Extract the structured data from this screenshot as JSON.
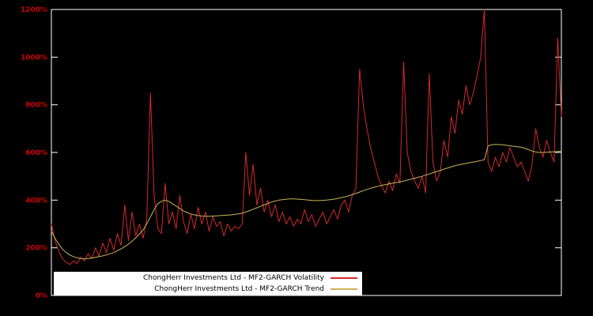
{
  "chart_data": {
    "type": "line",
    "title": "",
    "xlabel": "",
    "ylabel": "",
    "ylim": [
      0,
      1200
    ],
    "y_ticks": [
      {
        "value": 0,
        "label": "0%"
      },
      {
        "value": 200,
        "label": "200%"
      },
      {
        "value": 400,
        "label": "400%"
      },
      {
        "value": 600,
        "label": "600%"
      },
      {
        "value": 800,
        "label": "800%"
      },
      {
        "value": 1000,
        "label": "1000%"
      },
      {
        "value": 1200,
        "label": "1200%"
      }
    ],
    "grid": false,
    "legend_position": "bottom-center",
    "background_color": "#000000",
    "border_color": "#ffffff",
    "tick_label_color": "#cc0000",
    "series": [
      {
        "name": "ChongHerr Investments Ltd - MF2-GARCH Volatility",
        "color": "#d42a2a",
        "values": [
          300,
          230,
          185,
          155,
          140,
          130,
          145,
          135,
          160,
          145,
          175,
          155,
          200,
          165,
          220,
          180,
          240,
          190,
          260,
          210,
          380,
          230,
          350,
          250,
          300,
          240,
          320,
          850,
          420,
          280,
          260,
          470,
          300,
          350,
          280,
          420,
          310,
          260,
          340,
          280,
          370,
          300,
          350,
          270,
          330,
          290,
          310,
          250,
          300,
          270,
          290,
          280,
          300,
          600,
          420,
          550,
          380,
          450,
          350,
          400,
          330,
          380,
          310,
          350,
          300,
          330,
          290,
          320,
          300,
          360,
          310,
          340,
          290,
          320,
          350,
          300,
          330,
          360,
          320,
          380,
          400,
          350,
          420,
          450,
          950,
          800,
          700,
          620,
          560,
          500,
          460,
          430,
          480,
          440,
          510,
          470,
          980,
          600,
          520,
          480,
          450,
          500,
          430,
          930,
          560,
          480,
          520,
          650,
          580,
          750,
          680,
          820,
          760,
          880,
          800,
          850,
          920,
          1000,
          1200,
          560,
          520,
          580,
          540,
          600,
          560,
          620,
          580,
          540,
          560,
          520,
          480,
          550,
          700,
          620,
          580,
          650,
          600,
          560,
          1080,
          750
        ]
      },
      {
        "name": "ChongHerr Investments Ltd - MF2-GARCH Trend",
        "color": "#c9b458",
        "values": [
          270,
          240,
          215,
          195,
          180,
          170,
          163,
          158,
          155,
          154,
          155,
          157,
          160,
          163,
          166,
          170,
          175,
          180,
          188,
          196,
          205,
          215,
          228,
          242,
          258,
          275,
          300,
          330,
          360,
          385,
          395,
          400,
          395,
          385,
          375,
          365,
          355,
          348,
          342,
          338,
          335,
          333,
          332,
          332,
          333,
          334,
          335,
          336,
          337,
          338,
          340,
          342,
          345,
          350,
          356,
          362,
          368,
          374,
          380,
          386,
          392,
          396,
          400,
          402,
          404,
          405,
          405,
          404,
          403,
          402,
          400,
          399,
          398,
          398,
          399,
          400,
          402,
          404,
          407,
          410,
          414,
          418,
          423,
          428,
          434,
          440,
          445,
          450,
          454,
          458,
          462,
          465,
          468,
          471,
          474,
          477,
          480,
          484,
          488,
          492,
          496,
          500,
          505,
          510,
          515,
          520,
          525,
          530,
          535,
          540,
          545,
          548,
          551,
          554,
          557,
          560,
          563,
          566,
          570,
          628,
          632,
          634,
          633,
          632,
          630,
          628,
          626,
          624,
          622,
          618,
          612,
          606,
          602,
          600,
          600,
          601,
          602,
          603,
          604,
          606
        ]
      }
    ]
  }
}
